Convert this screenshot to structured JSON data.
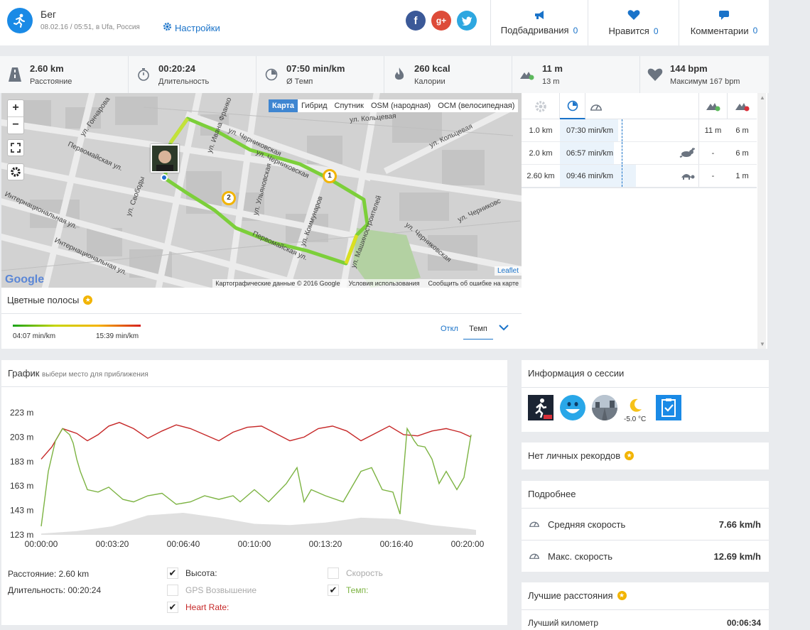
{
  "header": {
    "title": "Бег",
    "subtitle": "08.02.16 / 05:51, в Ufa, Россия",
    "settings_label": "Настройки",
    "social": {
      "facebook": "f",
      "google": "g+"
    },
    "cheers_label": "Подбадривания",
    "cheers_count": "0",
    "likes_label": "Нравится",
    "likes_count": "0",
    "comments_label": "Комментарии",
    "comments_count": "0"
  },
  "stats": [
    {
      "value": "2.60 km",
      "label": "Расстояние",
      "icon": "road-icon"
    },
    {
      "value": "00:20:24",
      "label": "Длительность",
      "icon": "stopwatch-icon"
    },
    {
      "value": "07:50 min/km",
      "label": "Ø Темп",
      "icon": "pace-icon"
    },
    {
      "value": "260 kcal",
      "label": "Калории",
      "icon": "flame-icon"
    },
    {
      "value": "11 m",
      "label": "13 m",
      "icon": "elevation-gain-icon"
    },
    {
      "value": "144 bpm",
      "label": "Максимум 167 bpm",
      "icon": "heart-icon"
    }
  ],
  "map": {
    "types": [
      "Карта",
      "Гибрид",
      "Спутник",
      "OSM (народная)",
      "OCM (велосипедная)"
    ],
    "active_type": "Карта",
    "attribution": [
      "Картографические данные © 2016 Google",
      "Условия использования",
      "Сообщить об ошибке на карте"
    ],
    "leaflet": "Leaflet",
    "google": "Google",
    "streets": [
      "ул. Гончарова",
      "ул. Ивана Франко",
      "ул. Черниковская",
      "ул. Кольцевая",
      "Первомайская ул.",
      "Интернациональная ул.",
      "ул. Свободы",
      "ул. Коммунаров",
      "Первомайская ул.",
      "ул. Машиностроителей",
      "ул. Черниковская",
      "Интернациональная ул.",
      "ул. Черниковс",
      "ул. Черниковская",
      "ул. Кольцевая",
      "ул. Ульяновская"
    ],
    "markers": [
      "1",
      "2"
    ]
  },
  "bands": {
    "title": "Цветные полосы",
    "min_label": "04:07 min/km",
    "max_label": "15:39 min/km",
    "off_label": "Откл",
    "pace_label": "Темп"
  },
  "splits": {
    "rows": [
      {
        "dist": "1.0 km",
        "pace": "07:30 min/km",
        "icon": "",
        "up": "11 m",
        "down": "6 m",
        "fill": 0.53
      },
      {
        "dist": "2.0 km",
        "pace": "06:57 min/km",
        "icon": "rabbit-icon",
        "up": "-",
        "down": "6 m",
        "fill": 0.49
      },
      {
        "dist": "2.60 km",
        "pace": "09:46 min/km",
        "icon": "turtle-icon",
        "up": "-",
        "down": "1 m",
        "fill": 0.69
      }
    ],
    "avg_pace_fraction": 0.56
  },
  "graph": {
    "title": "График",
    "hint": "выбери место для приближения",
    "summary_distance": "Расстояние: 2.60 km",
    "summary_duration": "Длительность: 00:20:24",
    "legend": [
      {
        "label": "Высота:",
        "checked": true,
        "color": "#333333"
      },
      {
        "label": "GPS Возвышение",
        "checked": false,
        "color": "#aaaaaa"
      },
      {
        "label": "Heart Rate:",
        "checked": true,
        "color": "#c62828"
      },
      {
        "label": "Скорость",
        "checked": false,
        "color": "#aaaaaa"
      },
      {
        "label": "Темп:",
        "checked": true,
        "color": "#7cb342"
      }
    ]
  },
  "chart_data": {
    "type": "line",
    "x_ticks": [
      "00:00:00",
      "00:03:20",
      "00:06:40",
      "00:10:00",
      "00:13:20",
      "00:16:40",
      "00:20:00"
    ],
    "y_ticks": [
      "223 m",
      "203 m",
      "183 m",
      "163 m",
      "143 m",
      "123 m"
    ],
    "ylim": [
      123,
      223
    ],
    "xlim_seconds": [
      0,
      1224
    ],
    "series": [
      {
        "key": "heart",
        "color": "#c62828",
        "x": [
          0,
          30,
          60,
          80,
          100,
          130,
          160,
          190,
          220,
          260,
          300,
          340,
          380,
          420,
          460,
          500,
          540,
          580,
          620,
          660,
          700,
          740,
          780,
          820,
          860,
          900,
          940,
          980,
          1020,
          1060,
          1100,
          1140,
          1180,
          1210
        ],
        "y": [
          185,
          195,
          210,
          208,
          206,
          200,
          205,
          212,
          215,
          210,
          202,
          208,
          213,
          210,
          205,
          200,
          207,
          211,
          212,
          206,
          200,
          203,
          210,
          212,
          208,
          200,
          206,
          212,
          205,
          204,
          208,
          210,
          207,
          203
        ]
      },
      {
        "key": "pace",
        "color": "#7cb342",
        "x": [
          0,
          20,
          40,
          60,
          80,
          90,
          100,
          110,
          130,
          160,
          190,
          230,
          260,
          300,
          340,
          380,
          420,
          460,
          500,
          540,
          560,
          600,
          640,
          690,
          720,
          740,
          760,
          800,
          850,
          900,
          930,
          960,
          990,
          1010,
          1030,
          1050,
          1060,
          1080,
          1100,
          1120,
          1140,
          1170,
          1190,
          1210
        ],
        "y": [
          130,
          175,
          200,
          210,
          205,
          198,
          185,
          175,
          160,
          158,
          162,
          152,
          150,
          155,
          157,
          148,
          150,
          155,
          152,
          155,
          150,
          160,
          150,
          165,
          178,
          150,
          160,
          155,
          150,
          175,
          178,
          160,
          158,
          140,
          210,
          200,
          196,
          195,
          185,
          165,
          175,
          160,
          170,
          205
        ]
      },
      {
        "key": "altitude",
        "color": "#e0e0e0",
        "x": [
          0,
          100,
          200,
          300,
          400,
          500,
          600,
          700,
          800,
          900,
          1000,
          1100,
          1200,
          1224
        ],
        "y": [
          124,
          126,
          130,
          139,
          141,
          137,
          132,
          131,
          133,
          137,
          136,
          131,
          128,
          127
        ]
      }
    ]
  },
  "session": {
    "title": "Информация о сессии",
    "temperature": "-5.0 °C"
  },
  "records": {
    "title": "Нет личных рекордов"
  },
  "details": {
    "title": "Подробнее",
    "rows": [
      {
        "label": "Средняя скорость",
        "value": "7.66 km/h"
      },
      {
        "label": "Макс. скорость",
        "value": "12.69 km/h"
      }
    ]
  },
  "best": {
    "title": "Лучшие расстояния",
    "row_label": "Лучший километр",
    "row_value": "00:06:34"
  }
}
